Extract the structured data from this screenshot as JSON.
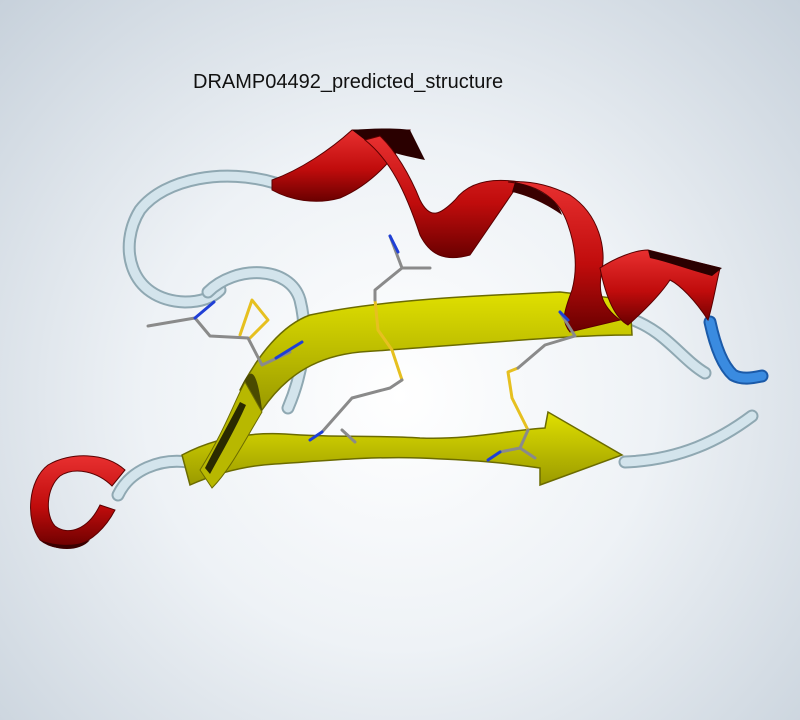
{
  "viewer": {
    "title": "DRAMP04492_predicted_structure"
  },
  "palette": {
    "helix": "#d11212",
    "helix_dark": "#5a0000",
    "sheet": "#c8c800",
    "sheet_dark": "#6b6b00",
    "coil": "#c9dde6",
    "coil_terminus": "#2f7fd6",
    "disulfide": "#e6c020",
    "sidechain": "#8a8a8a",
    "nitrogen": "#1f3fd6"
  }
}
